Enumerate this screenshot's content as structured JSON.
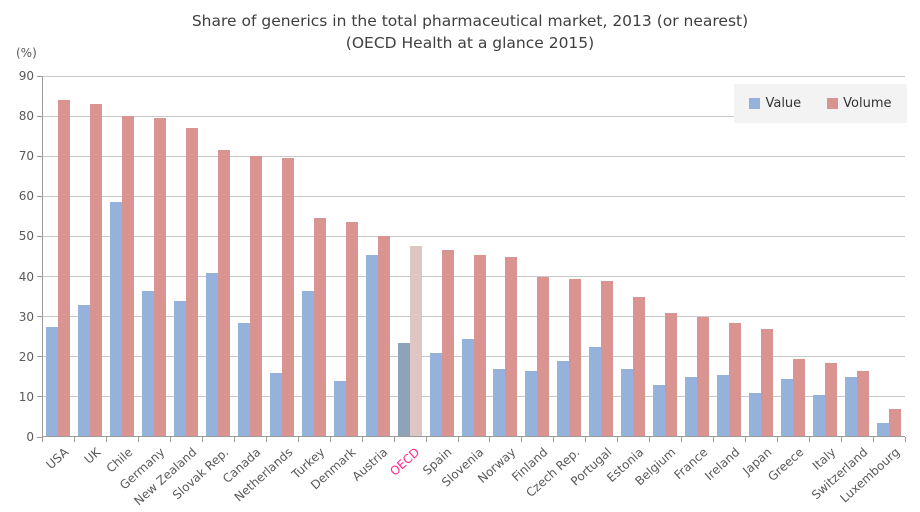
{
  "chart": {
    "title_line1": "Share of generics in the total pharmaceutical market, 2013 (or nearest)",
    "title_line2": "(OECD Health at a glance 2015)",
    "y_unit_label": "(%)",
    "legend": {
      "value_label": "Value",
      "volume_label": "Volume"
    }
  },
  "colors": {
    "value_bar": "#94b2db",
    "volume_bar": "#d99492",
    "oecd_value_bar": "#8fa3b8",
    "oecd_volume_bar": "#ddc6c4",
    "oecd_label": "#fa2b8f",
    "axis_label": "#595959",
    "gridline": "#c9c9c9",
    "axis_line": "#9b9b9b",
    "title_text": "#3f3f3f"
  },
  "chart_data": {
    "type": "bar",
    "title": "Share of generics in the total pharmaceutical market, 2013 (or nearest)",
    "subtitle": "(OECD Health at a glance 2015)",
    "xlabel": "",
    "ylabel": "(%)",
    "ylim": [
      0,
      90
    ],
    "yticks": [
      0,
      10,
      20,
      30,
      40,
      50,
      60,
      70,
      80,
      90
    ],
    "grid": true,
    "legend_position": "top-right",
    "highlight_category": "OECD",
    "categories": [
      "USA",
      "UK",
      "Chile",
      "Germany",
      "New Zealand",
      "Slovak Rep.",
      "Canada",
      "Netherlands",
      "Turkey",
      "Denmark",
      "Austria",
      "OECD",
      "Spain",
      "Slovenia",
      "Norway",
      "Finland",
      "Czech Rep.",
      "Portugal",
      "Estonia",
      "Belgium",
      "France",
      "Ireland",
      "Japan",
      "Greece",
      "Italy",
      "Switzerland",
      "Luxembourg"
    ],
    "series": [
      {
        "name": "Value",
        "values": [
          27.5,
          33,
          58.5,
          36.5,
          34,
          41,
          28.5,
          16,
          36.5,
          14,
          45.5,
          23.5,
          21,
          24.5,
          17,
          16.5,
          19,
          22.5,
          17,
          13,
          15,
          15.5,
          11,
          14.5,
          10.5,
          15,
          3.5
        ]
      },
      {
        "name": "Volume",
        "values": [
          84,
          83,
          80,
          79.5,
          77,
          71.5,
          70,
          69.5,
          54.5,
          53.5,
          50,
          47.5,
          46.5,
          45.5,
          45,
          40,
          39.5,
          39,
          35,
          31,
          30,
          28.5,
          27,
          19.5,
          18.5,
          16.5,
          7
        ]
      }
    ]
  }
}
